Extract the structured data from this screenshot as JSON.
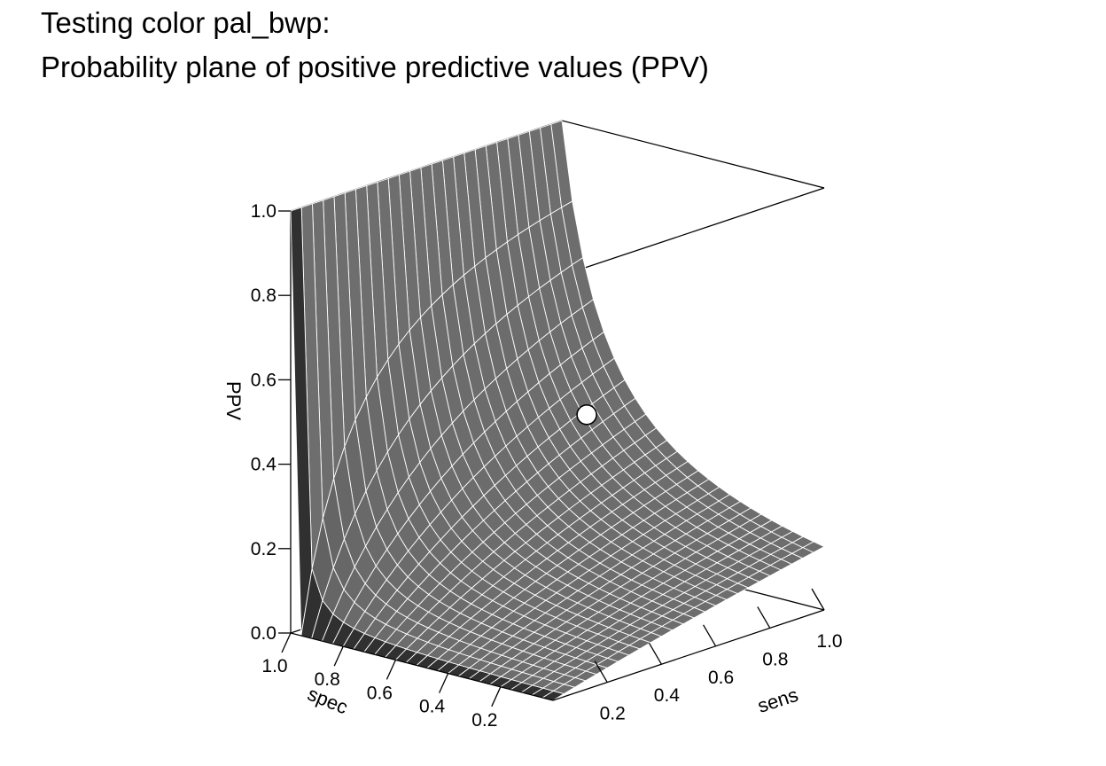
{
  "title_line1": "Testing color pal_bwp:",
  "title_line2": "Probability plane of positive predictive values (PPV)",
  "chart_data": {
    "type": "surface",
    "zlabel": "PPV",
    "xlabel": "sens",
    "ylabel": "spec",
    "z_ticks": [
      "0.0",
      "0.2",
      "0.4",
      "0.6",
      "0.8",
      "1.0"
    ],
    "sens_ticks": [
      "0.2",
      "0.4",
      "0.6",
      "0.8",
      "1.0"
    ],
    "spec_ticks": [
      "0.2",
      "0.4",
      "0.6",
      "0.8",
      "1.0"
    ],
    "sens_range": [
      0,
      1
    ],
    "spec_range": [
      0,
      1
    ],
    "z_range": [
      0,
      1
    ],
    "grid_steps": 25,
    "prevalence": 0.15,
    "point": {
      "sens": 0.85,
      "spec": 0.75,
      "ppv": 0.375
    },
    "colors": {
      "surface": "#6e6e6e",
      "surface_dark": "#303030",
      "grid": "#ffffff",
      "point_fill": "#ffffff"
    }
  }
}
